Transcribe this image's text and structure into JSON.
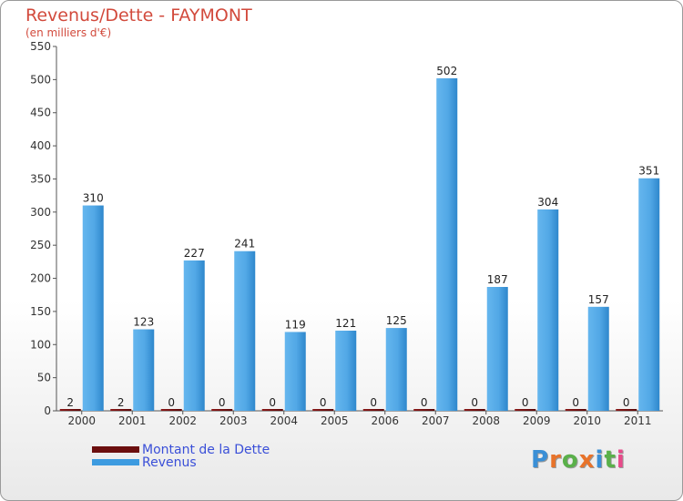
{
  "chart_data": {
    "type": "bar",
    "title": "Revenus/Dette - FAYMONT",
    "subtitle": "(en milliers d'€)",
    "categories": [
      "2000",
      "2001",
      "2002",
      "2003",
      "2004",
      "2005",
      "2006",
      "2007",
      "2008",
      "2009",
      "2010",
      "2011"
    ],
    "series": [
      {
        "name": "Montant de la Dette",
        "color": "#6b0e0e",
        "values": [
          2,
          2,
          0,
          0,
          0,
          0,
          0,
          0,
          0,
          0,
          0,
          0
        ]
      },
      {
        "name": "Revenus",
        "color": "#3d9be0",
        "values": [
          310,
          123,
          227,
          241,
          119,
          121,
          125,
          502,
          187,
          304,
          157,
          351
        ]
      }
    ],
    "ylim": [
      0,
      550
    ],
    "yticks": [
      0,
      50,
      100,
      150,
      200,
      250,
      300,
      350,
      400,
      450,
      500,
      550
    ],
    "grid": false,
    "legend_position": "bottom-left"
  },
  "logo": {
    "text": "Proxiti",
    "letter_colors": [
      "#3a8fd6",
      "#e8732a",
      "#5ab04a",
      "#e8732a",
      "#3a8fd6",
      "#5ab04a",
      "#e84a8a"
    ]
  }
}
